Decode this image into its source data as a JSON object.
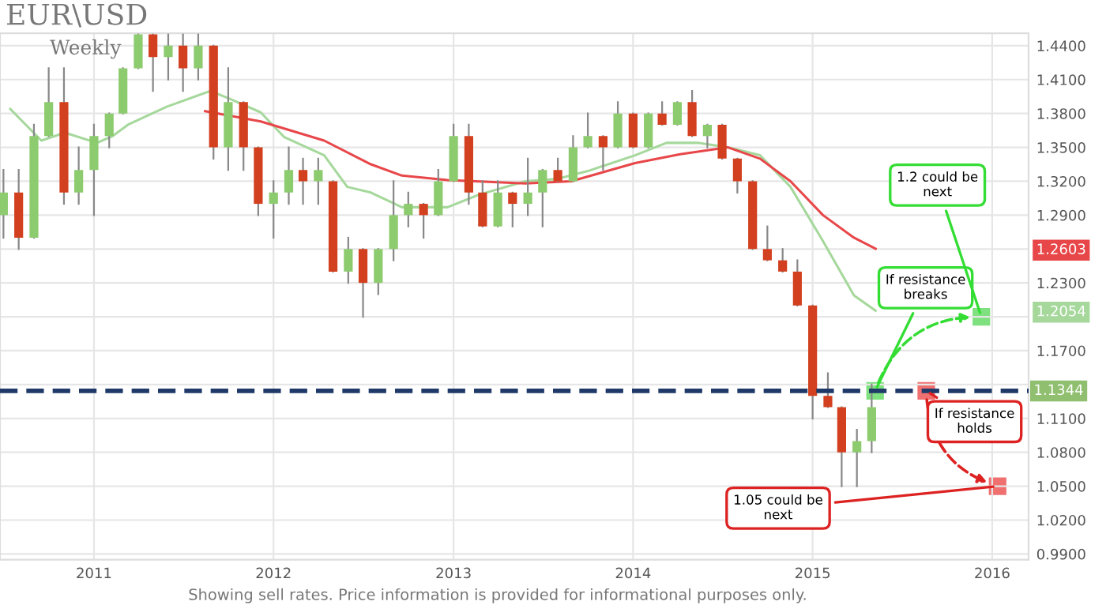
{
  "chart_data": {
    "type": "candlestick",
    "title": "EUR\\USD",
    "subtitle": "Weekly",
    "x": [
      "2010-07",
      "2010-08",
      "2010-09",
      "2010-10",
      "2010-11",
      "2010-12",
      "2011-01",
      "2011-02",
      "2011-03",
      "2011-04",
      "2011-05",
      "2011-06",
      "2011-07",
      "2011-08",
      "2011-09",
      "2011-10",
      "2011-11",
      "2011-12",
      "2012-01",
      "2012-02",
      "2012-03",
      "2012-04",
      "2012-05",
      "2012-06",
      "2012-07",
      "2012-08",
      "2012-09",
      "2012-10",
      "2012-11",
      "2012-12",
      "2013-01",
      "2013-02",
      "2013-03",
      "2013-04",
      "2013-05",
      "2013-06",
      "2013-07",
      "2013-08",
      "2013-09",
      "2013-10",
      "2013-11",
      "2013-12",
      "2014-01",
      "2014-02",
      "2014-03",
      "2014-04",
      "2014-05",
      "2014-06",
      "2014-07",
      "2014-08",
      "2014-09",
      "2014-10",
      "2014-11",
      "2014-12",
      "2015-01",
      "2015-02",
      "2015-03",
      "2015-04",
      "2015-05"
    ],
    "ohlc": [
      [
        1.29,
        1.33,
        1.27,
        1.31
      ],
      [
        1.31,
        1.33,
        1.26,
        1.27
      ],
      [
        1.27,
        1.37,
        1.27,
        1.36
      ],
      [
        1.36,
        1.42,
        1.36,
        1.39
      ],
      [
        1.39,
        1.42,
        1.3,
        1.31
      ],
      [
        1.31,
        1.35,
        1.3,
        1.33
      ],
      [
        1.33,
        1.37,
        1.29,
        1.36
      ],
      [
        1.36,
        1.38,
        1.35,
        1.38
      ],
      [
        1.38,
        1.42,
        1.38,
        1.42
      ],
      [
        1.42,
        1.45,
        1.42,
        1.45
      ],
      [
        1.45,
        1.45,
        1.4,
        1.43
      ],
      [
        1.43,
        1.45,
        1.41,
        1.44
      ],
      [
        1.44,
        1.45,
        1.4,
        1.42
      ],
      [
        1.42,
        1.45,
        1.41,
        1.44
      ],
      [
        1.44,
        1.44,
        1.34,
        1.35
      ],
      [
        1.35,
        1.42,
        1.33,
        1.39
      ],
      [
        1.39,
        1.39,
        1.33,
        1.35
      ],
      [
        1.35,
        1.35,
        1.29,
        1.3
      ],
      [
        1.3,
        1.32,
        1.27,
        1.31
      ],
      [
        1.31,
        1.35,
        1.3,
        1.33
      ],
      [
        1.33,
        1.34,
        1.3,
        1.32
      ],
      [
        1.32,
        1.34,
        1.3,
        1.33
      ],
      [
        1.32,
        1.32,
        1.24,
        1.24
      ],
      [
        1.24,
        1.27,
        1.23,
        1.26
      ],
      [
        1.26,
        1.26,
        1.2,
        1.23
      ],
      [
        1.23,
        1.26,
        1.22,
        1.26
      ],
      [
        1.26,
        1.32,
        1.25,
        1.29
      ],
      [
        1.29,
        1.31,
        1.28,
        1.3
      ],
      [
        1.3,
        1.3,
        1.27,
        1.29
      ],
      [
        1.29,
        1.33,
        1.29,
        1.32
      ],
      [
        1.32,
        1.37,
        1.32,
        1.36
      ],
      [
        1.36,
        1.37,
        1.3,
        1.31
      ],
      [
        1.31,
        1.32,
        1.28,
        1.28
      ],
      [
        1.28,
        1.32,
        1.28,
        1.31
      ],
      [
        1.31,
        1.31,
        1.28,
        1.3
      ],
      [
        1.3,
        1.34,
        1.29,
        1.31
      ],
      [
        1.31,
        1.33,
        1.28,
        1.33
      ],
      [
        1.33,
        1.34,
        1.32,
        1.32
      ],
      [
        1.32,
        1.36,
        1.32,
        1.35
      ],
      [
        1.35,
        1.38,
        1.35,
        1.36
      ],
      [
        1.36,
        1.36,
        1.33,
        1.35
      ],
      [
        1.35,
        1.39,
        1.35,
        1.38
      ],
      [
        1.38,
        1.38,
        1.35,
        1.35
      ],
      [
        1.35,
        1.38,
        1.35,
        1.38
      ],
      [
        1.38,
        1.39,
        1.37,
        1.37
      ],
      [
        1.37,
        1.39,
        1.37,
        1.39
      ],
      [
        1.39,
        1.4,
        1.36,
        1.36
      ],
      [
        1.36,
        1.37,
        1.35,
        1.37
      ],
      [
        1.37,
        1.37,
        1.34,
        1.34
      ],
      [
        1.34,
        1.34,
        1.31,
        1.32
      ],
      [
        1.32,
        1.32,
        1.26,
        1.26
      ],
      [
        1.26,
        1.28,
        1.25,
        1.25
      ],
      [
        1.25,
        1.26,
        1.24,
        1.24
      ],
      [
        1.24,
        1.25,
        1.21,
        1.21
      ],
      [
        1.21,
        1.21,
        1.11,
        1.13
      ],
      [
        1.13,
        1.15,
        1.12,
        1.12
      ],
      [
        1.12,
        1.12,
        1.05,
        1.08
      ],
      [
        1.08,
        1.1,
        1.05,
        1.09
      ],
      [
        1.09,
        1.14,
        1.08,
        1.12
      ]
    ],
    "series": [
      {
        "type": "line",
        "color": "#a6d89c",
        "x": [
          "2010-07-15",
          "2010-09-16",
          "2010-11-03",
          "2011-01-07",
          "2011-02-08",
          "2011-03-11",
          "2011-05-29",
          "2011-08-26",
          "2011-10-04",
          "2011-12-06",
          "2012-01-23",
          "2012-04-13",
          "2012-05-30",
          "2012-07-17",
          "2012-09-18",
          "2012-12-20",
          "2013-02-21",
          "2013-05-27",
          "2013-07-30",
          "2013-10-01",
          "2014-01-05",
          "2014-03-10",
          "2014-05-12",
          "2014-07-13",
          "2014-09-16",
          "2014-11-17",
          "2015-01-22",
          "2015-03-26",
          "2015-05-09"
        ],
        "values": [
          1.384,
          1.356,
          1.363,
          1.354,
          1.36,
          1.37,
          1.386,
          1.4,
          1.393,
          1.381,
          1.359,
          1.343,
          1.315,
          1.31,
          1.297,
          1.297,
          1.308,
          1.32,
          1.322,
          1.329,
          1.343,
          1.354,
          1.354,
          1.35,
          1.343,
          1.315,
          1.267,
          1.219,
          1.2054
        ]
      },
      {
        "type": "line",
        "color": "#e8474a",
        "x": [
          "2011-08-15",
          "2011-12-06",
          "2012-04-13",
          "2012-07-17",
          "2012-09-18",
          "2012-12-20",
          "2013-05-27",
          "2013-08-28",
          "2014-01-05",
          "2014-04-07",
          "2014-07-13",
          "2014-09-16",
          "2014-11-17",
          "2015-01-22",
          "2015-03-26",
          "2015-05-09"
        ],
        "values": [
          1.382,
          1.373,
          1.356,
          1.335,
          1.325,
          1.321,
          1.318,
          1.32,
          1.336,
          1.344,
          1.35,
          1.34,
          1.32,
          1.29,
          1.27,
          1.2603
        ]
      }
    ],
    "ref_lines": [
      {
        "axis": "y",
        "value": 1.1344,
        "label": "1.1344",
        "color": "#1f3a68",
        "line_style": "dashed"
      }
    ],
    "annotations": [
      {
        "text": "If resistance breaks",
        "x": "2015-05-08",
        "y": 1.1344
      },
      {
        "text": "1.2 could be next",
        "x": "2015-12-10",
        "y": 1.2
      },
      {
        "text": "If resistance holds",
        "x": "2015-08-20",
        "y": 1.1344
      },
      {
        "text": "1.05 could be next",
        "x": "2016-01-12",
        "y": 1.05
      },
      "Showing sell rates. Price information is provided for informational purposes only."
    ],
    "xlim": [
      "2010-06-24",
      "2016-03-15"
    ],
    "xticks": [
      "2011",
      "2012",
      "2013",
      "2014",
      "2015",
      "2016"
    ],
    "ylim": [
      0.985,
      1.451
    ],
    "yticks": [
      {
        "value": 0.99,
        "label": "0.9900"
      },
      {
        "value": 1.02,
        "label": "1.0200"
      },
      {
        "value": 1.05,
        "label": "1.0500"
      },
      {
        "value": 1.08,
        "label": "1.0800"
      },
      {
        "value": 1.11,
        "label": "1.1100"
      },
      {
        "value": 1.14,
        "label": null
      },
      {
        "value": 1.17,
        "label": "1.1700"
      },
      {
        "value": 1.2,
        "label": null
      },
      {
        "value": 1.2054,
        "label": "1.2054"
      },
      {
        "value": 1.23,
        "label": "1.2300"
      },
      {
        "value": 1.26,
        "label": null
      },
      {
        "value": 1.2603,
        "label": "1.2603"
      },
      {
        "value": 1.29,
        "label": "1.2900"
      },
      {
        "value": 1.32,
        "label": "1.3200"
      },
      {
        "value": 1.35,
        "label": "1.3500"
      },
      {
        "value": 1.38,
        "label": "1.3800"
      },
      {
        "value": 1.41,
        "label": "1.4100"
      },
      {
        "value": 1.44,
        "label": "1.4400"
      }
    ],
    "grid": true
  }
}
